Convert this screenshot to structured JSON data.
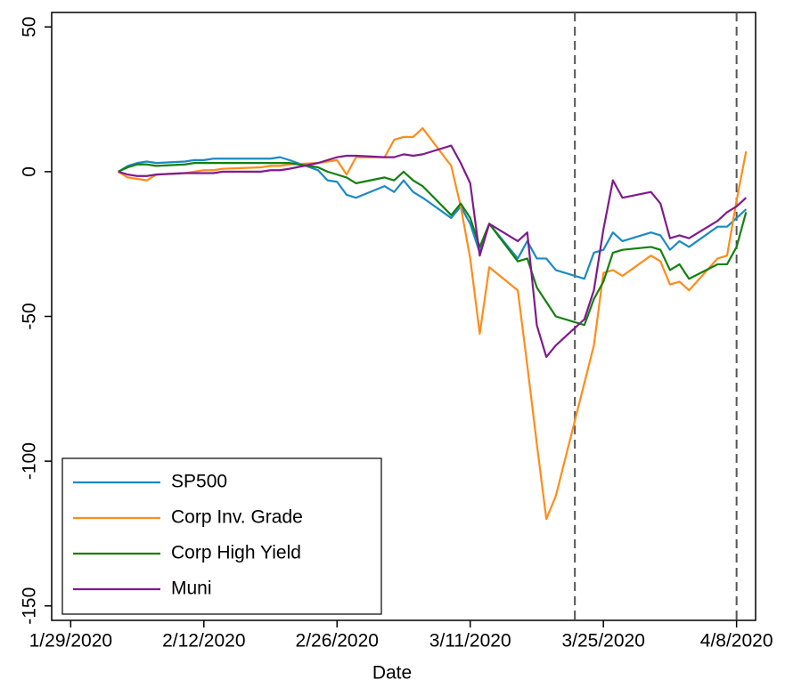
{
  "chart_data": {
    "type": "line",
    "x_label": "Date",
    "x": [
      "2/3/2020",
      "2/4/2020",
      "2/5/2020",
      "2/6/2020",
      "2/7/2020",
      "2/10/2020",
      "2/11/2020",
      "2/12/2020",
      "2/13/2020",
      "2/14/2020",
      "2/18/2020",
      "2/19/2020",
      "2/20/2020",
      "2/21/2020",
      "2/24/2020",
      "2/25/2020",
      "2/26/2020",
      "2/27/2020",
      "2/28/2020",
      "3/2/2020",
      "3/3/2020",
      "3/4/2020",
      "3/5/2020",
      "3/6/2020",
      "3/9/2020",
      "3/10/2020",
      "3/11/2020",
      "3/12/2020",
      "3/13/2020",
      "3/16/2020",
      "3/17/2020",
      "3/18/2020",
      "3/19/2020",
      "3/20/2020",
      "3/23/2020",
      "3/24/2020",
      "3/25/2020",
      "3/26/2020",
      "3/27/2020",
      "3/30/2020",
      "3/31/2020",
      "4/1/2020",
      "4/2/2020",
      "4/3/2020",
      "4/6/2020",
      "4/7/2020",
      "4/8/2020",
      "4/9/2020"
    ],
    "series": [
      {
        "name": "SP500",
        "color": "#1a8bc2",
        "values": [
          0,
          2,
          3,
          3.5,
          3,
          3.5,
          4,
          4,
          4.5,
          4.5,
          4.5,
          4.5,
          5,
          4,
          0.5,
          -3,
          -3.5,
          -8,
          -9,
          -5,
          -7,
          -3,
          -7,
          -9,
          -16,
          -12,
          -18,
          -28,
          -18,
          -30,
          -24,
          -30,
          -30,
          -34,
          -37,
          -28,
          -27,
          -21,
          -24,
          -21,
          -22,
          -27,
          -24,
          -26,
          -19,
          -19,
          -16,
          -13
        ]
      },
      {
        "name": "Corp Inv. Grade",
        "color": "#ff8c1a",
        "values": [
          0,
          -2,
          -2.5,
          -3,
          -1,
          -0.5,
          0,
          0.5,
          0.5,
          1,
          1.5,
          2,
          2,
          2.5,
          3,
          3.5,
          4,
          -1,
          5,
          5,
          11,
          12,
          12,
          15,
          2,
          -12,
          -30,
          -56,
          -33,
          -41,
          -67,
          -94,
          -120,
          -112,
          -73,
          -60,
          -35,
          -34,
          -36,
          -29,
          -31,
          -39,
          -38,
          -41,
          -30,
          -29,
          -10,
          7
        ]
      },
      {
        "name": "Corp High Yield",
        "color": "#13800f",
        "values": [
          0,
          1.5,
          2.5,
          2.5,
          2,
          2.5,
          3,
          3,
          3,
          3,
          3,
          3,
          3,
          3,
          1.5,
          0,
          -1,
          -2,
          -4,
          -2,
          -3,
          0,
          -3,
          -5,
          -15,
          -11,
          -16,
          -26,
          -18,
          -31,
          -30,
          -40,
          -45,
          -50,
          -53,
          -44,
          -38,
          -28,
          -27,
          -26,
          -27,
          -34,
          -32,
          -37,
          -32,
          -32,
          -26,
          -14
        ]
      },
      {
        "name": "Muni",
        "color": "#7f1a8c",
        "values": [
          0,
          -1,
          -1.5,
          -1.5,
          -1,
          -0.5,
          -0.5,
          -0.5,
          -0.5,
          0,
          0,
          0.5,
          0.5,
          1,
          3,
          4,
          5,
          5.5,
          5.5,
          5,
          5,
          6,
          5.5,
          6,
          9,
          3,
          -4,
          -29,
          -18,
          -24,
          -21,
          -53,
          -64,
          -60,
          -51,
          -41,
          -20,
          -3,
          -9,
          -7,
          -11,
          -23,
          -22,
          -23,
          -17,
          -14,
          -12,
          -9
        ]
      }
    ],
    "xlim": [
      "1/27/2020",
      "4/10/2020"
    ],
    "xticks": [
      "1/29/2020",
      "2/12/2020",
      "2/26/2020",
      "3/11/2020",
      "3/25/2020",
      "4/8/2020"
    ],
    "ylim": [
      -155,
      55
    ],
    "yticks": [
      50,
      0,
      -50,
      -100,
      -150
    ],
    "vlines": [
      "3/22/2020",
      "4/8/2020"
    ],
    "vline_color": "#555555",
    "grid": false,
    "legend_position": "lower left"
  }
}
